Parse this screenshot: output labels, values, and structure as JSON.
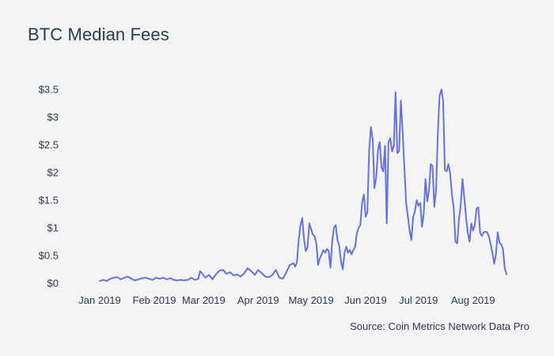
{
  "chart_data": {
    "type": "line",
    "title": "BTC Median Fees",
    "source": "Source: Coin Metrics Network Data Pro",
    "xlabel": "",
    "ylabel": "",
    "ylim": [
      0,
      3.5
    ],
    "grid": false,
    "legend": "none",
    "colors": {
      "line": "#6670e8",
      "text": "#2b3a55",
      "background": "#f4f4f4"
    },
    "y_ticks": [
      {
        "value": 0,
        "label": "$0"
      },
      {
        "value": 0.5,
        "label": "$0.5"
      },
      {
        "value": 1,
        "label": "$1"
      },
      {
        "value": 1.5,
        "label": "$1.5"
      },
      {
        "value": 2,
        "label": "$2"
      },
      {
        "value": 2.5,
        "label": "$2.5"
      },
      {
        "value": 3,
        "label": "$3"
      },
      {
        "value": 3.5,
        "label": "$3.5"
      }
    ],
    "x_ticks": [
      {
        "date": "2019-01-01",
        "label": "Jan 2019"
      },
      {
        "date": "2019-02-01",
        "label": "Feb 2019"
      },
      {
        "date": "2019-03-01",
        "label": "Mar 2019"
      },
      {
        "date": "2019-04-01",
        "label": "Apr 2019"
      },
      {
        "date": "2019-05-01",
        "label": "May 2019"
      },
      {
        "date": "2019-06-01",
        "label": "Jun 2019"
      },
      {
        "date": "2019-07-01",
        "label": "Jul 2019"
      },
      {
        "date": "2019-08-01",
        "label": "Aug 2019"
      }
    ],
    "series": [
      {
        "points": [
          [
            "2019-01-01",
            0.04
          ],
          [
            "2019-01-03",
            0.06
          ],
          [
            "2019-01-05",
            0.04
          ],
          [
            "2019-01-07",
            0.08
          ],
          [
            "2019-01-09",
            0.1
          ],
          [
            "2019-01-11",
            0.11
          ],
          [
            "2019-01-13",
            0.07
          ],
          [
            "2019-01-15",
            0.1
          ],
          [
            "2019-01-17",
            0.12
          ],
          [
            "2019-01-19",
            0.08
          ],
          [
            "2019-01-21",
            0.05
          ],
          [
            "2019-01-23",
            0.07
          ],
          [
            "2019-01-25",
            0.09
          ],
          [
            "2019-01-27",
            0.1
          ],
          [
            "2019-01-29",
            0.08
          ],
          [
            "2019-01-31",
            0.06
          ],
          [
            "2019-02-02",
            0.1
          ],
          [
            "2019-02-04",
            0.08
          ],
          [
            "2019-02-06",
            0.1
          ],
          [
            "2019-02-08",
            0.07
          ],
          [
            "2019-02-10",
            0.09
          ],
          [
            "2019-02-12",
            0.06
          ],
          [
            "2019-02-14",
            0.05
          ],
          [
            "2019-02-16",
            0.06
          ],
          [
            "2019-02-18",
            0.05
          ],
          [
            "2019-02-20",
            0.06
          ],
          [
            "2019-02-22",
            0.1
          ],
          [
            "2019-02-24",
            0.06
          ],
          [
            "2019-02-26",
            0.08
          ],
          [
            "2019-02-27",
            0.22
          ],
          [
            "2019-02-28",
            0.18
          ],
          [
            "2019-03-02",
            0.1
          ],
          [
            "2019-03-04",
            0.15
          ],
          [
            "2019-03-06",
            0.07
          ],
          [
            "2019-03-08",
            0.16
          ],
          [
            "2019-03-10",
            0.23
          ],
          [
            "2019-03-12",
            0.24
          ],
          [
            "2019-03-14",
            0.17
          ],
          [
            "2019-03-16",
            0.2
          ],
          [
            "2019-03-18",
            0.14
          ],
          [
            "2019-03-20",
            0.16
          ],
          [
            "2019-03-22",
            0.12
          ],
          [
            "2019-03-24",
            0.18
          ],
          [
            "2019-03-26",
            0.27
          ],
          [
            "2019-03-28",
            0.22
          ],
          [
            "2019-03-30",
            0.15
          ],
          [
            "2019-04-01",
            0.24
          ],
          [
            "2019-04-03",
            0.18
          ],
          [
            "2019-04-05",
            0.12
          ],
          [
            "2019-04-07",
            0.11
          ],
          [
            "2019-04-09",
            0.15
          ],
          [
            "2019-04-11",
            0.24
          ],
          [
            "2019-04-13",
            0.1
          ],
          [
            "2019-04-15",
            0.08
          ],
          [
            "2019-04-17",
            0.2
          ],
          [
            "2019-04-19",
            0.33
          ],
          [
            "2019-04-21",
            0.36
          ],
          [
            "2019-04-22",
            0.3
          ],
          [
            "2019-04-23",
            0.38
          ],
          [
            "2019-04-24",
            0.78
          ],
          [
            "2019-04-25",
            1.05
          ],
          [
            "2019-04-26",
            1.18
          ],
          [
            "2019-04-27",
            0.8
          ],
          [
            "2019-04-28",
            0.58
          ],
          [
            "2019-04-29",
            0.65
          ],
          [
            "2019-04-30",
            1.08
          ],
          [
            "2019-05-01",
            0.98
          ],
          [
            "2019-05-02",
            0.88
          ],
          [
            "2019-05-03",
            0.85
          ],
          [
            "2019-05-04",
            0.72
          ],
          [
            "2019-05-05",
            0.33
          ],
          [
            "2019-05-06",
            0.45
          ],
          [
            "2019-05-07",
            0.52
          ],
          [
            "2019-05-08",
            0.6
          ],
          [
            "2019-05-09",
            0.55
          ],
          [
            "2019-05-10",
            0.62
          ],
          [
            "2019-05-11",
            0.58
          ],
          [
            "2019-05-12",
            0.28
          ],
          [
            "2019-05-13",
            0.75
          ],
          [
            "2019-05-14",
            1.0
          ],
          [
            "2019-05-15",
            1.05
          ],
          [
            "2019-05-16",
            0.78
          ],
          [
            "2019-05-17",
            0.68
          ],
          [
            "2019-05-18",
            0.4
          ],
          [
            "2019-05-19",
            0.25
          ],
          [
            "2019-05-20",
            0.55
          ],
          [
            "2019-05-21",
            0.66
          ],
          [
            "2019-05-22",
            0.55
          ],
          [
            "2019-05-23",
            0.6
          ],
          [
            "2019-05-24",
            0.52
          ],
          [
            "2019-05-25",
            0.6
          ],
          [
            "2019-05-26",
            0.65
          ],
          [
            "2019-05-27",
            0.9
          ],
          [
            "2019-05-28",
            1.0
          ],
          [
            "2019-05-29",
            1.05
          ],
          [
            "2019-05-30",
            1.45
          ],
          [
            "2019-05-31",
            1.6
          ],
          [
            "2019-06-01",
            1.2
          ],
          [
            "2019-06-02",
            1.28
          ],
          [
            "2019-06-03",
            2.4
          ],
          [
            "2019-06-04",
            2.82
          ],
          [
            "2019-06-05",
            2.6
          ],
          [
            "2019-06-06",
            1.72
          ],
          [
            "2019-06-07",
            1.9
          ],
          [
            "2019-06-08",
            2.4
          ],
          [
            "2019-06-09",
            2.55
          ],
          [
            "2019-06-10",
            2.1
          ],
          [
            "2019-06-11",
            2.02
          ],
          [
            "2019-06-12",
            2.48
          ],
          [
            "2019-06-13",
            1.08
          ],
          [
            "2019-06-14",
            2.55
          ],
          [
            "2019-06-15",
            2.62
          ],
          [
            "2019-06-16",
            2.38
          ],
          [
            "2019-06-17",
            2.48
          ],
          [
            "2019-06-18",
            3.45
          ],
          [
            "2019-06-19",
            2.35
          ],
          [
            "2019-06-20",
            2.38
          ],
          [
            "2019-06-21",
            3.3
          ],
          [
            "2019-06-22",
            2.75
          ],
          [
            "2019-06-23",
            2.1
          ],
          [
            "2019-06-24",
            1.45
          ],
          [
            "2019-06-25",
            1.2
          ],
          [
            "2019-06-26",
            0.95
          ],
          [
            "2019-06-27",
            0.78
          ],
          [
            "2019-06-28",
            1.2
          ],
          [
            "2019-06-29",
            1.3
          ],
          [
            "2019-06-30",
            1.5
          ],
          [
            "2019-07-01",
            1.4
          ],
          [
            "2019-07-02",
            1.45
          ],
          [
            "2019-07-03",
            1.02
          ],
          [
            "2019-07-04",
            1.25
          ],
          [
            "2019-07-05",
            1.88
          ],
          [
            "2019-07-06",
            1.48
          ],
          [
            "2019-07-07",
            1.68
          ],
          [
            "2019-07-08",
            2.15
          ],
          [
            "2019-07-09",
            2.12
          ],
          [
            "2019-07-10",
            1.38
          ],
          [
            "2019-07-11",
            1.68
          ],
          [
            "2019-07-12",
            2.7
          ],
          [
            "2019-07-13",
            3.38
          ],
          [
            "2019-07-14",
            3.5
          ],
          [
            "2019-07-15",
            3.3
          ],
          [
            "2019-07-16",
            2.05
          ],
          [
            "2019-07-17",
            2.02
          ],
          [
            "2019-07-18",
            2.15
          ],
          [
            "2019-07-19",
            1.98
          ],
          [
            "2019-07-20",
            1.6
          ],
          [
            "2019-07-21",
            1.38
          ],
          [
            "2019-07-22",
            0.75
          ],
          [
            "2019-07-23",
            0.72
          ],
          [
            "2019-07-24",
            1.15
          ],
          [
            "2019-07-25",
            1.4
          ],
          [
            "2019-07-26",
            1.88
          ],
          [
            "2019-07-27",
            1.55
          ],
          [
            "2019-07-28",
            1.2
          ],
          [
            "2019-07-29",
            0.92
          ],
          [
            "2019-07-30",
            0.75
          ],
          [
            "2019-07-31",
            1.08
          ],
          [
            "2019-08-01",
            0.95
          ],
          [
            "2019-08-02",
            1.05
          ],
          [
            "2019-08-03",
            1.35
          ],
          [
            "2019-08-04",
            1.37
          ],
          [
            "2019-08-05",
            0.92
          ],
          [
            "2019-08-06",
            0.85
          ],
          [
            "2019-08-07",
            0.92
          ],
          [
            "2019-08-08",
            0.93
          ],
          [
            "2019-08-09",
            0.92
          ],
          [
            "2019-08-10",
            0.85
          ],
          [
            "2019-08-11",
            0.7
          ],
          [
            "2019-08-12",
            0.55
          ],
          [
            "2019-08-13",
            0.35
          ],
          [
            "2019-08-14",
            0.52
          ],
          [
            "2019-08-15",
            0.92
          ],
          [
            "2019-08-16",
            0.73
          ],
          [
            "2019-08-17",
            0.7
          ],
          [
            "2019-08-18",
            0.62
          ],
          [
            "2019-08-19",
            0.27
          ],
          [
            "2019-08-20",
            0.16
          ]
        ]
      }
    ]
  }
}
